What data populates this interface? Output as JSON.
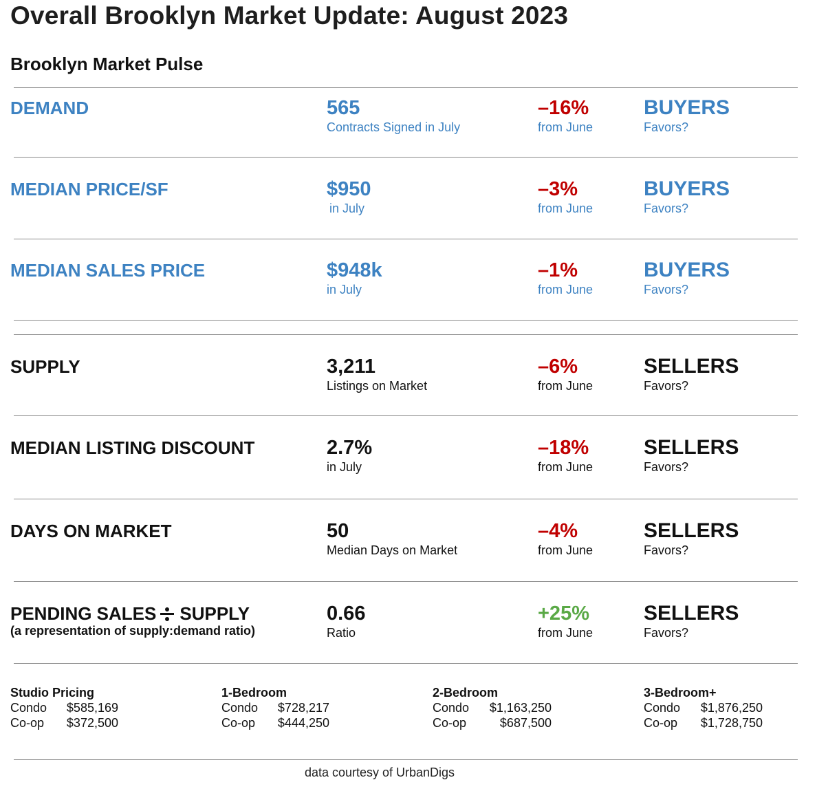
{
  "title": "Overall Brooklyn Market Update: August 2023",
  "subtitle": "Brooklyn Market Pulse",
  "metrics": [
    {
      "label": "DEMAND",
      "note": "",
      "value": "565",
      "value_sub": "Contracts Signed in July",
      "change": "–16%",
      "change_sub": "from June",
      "favors": "BUYERS",
      "favors_sub": "Favors?",
      "label_color": "#3d82c2",
      "change_color": "#c00000"
    },
    {
      "label": "MEDIAN PRICE/SF",
      "note": "",
      "value": "$950",
      "value_sub": "in July",
      "change": "–3%",
      "change_sub": "from June",
      "favors": "BUYERS",
      "favors_sub": "Favors?",
      "label_color": "#3d82c2",
      "change_color": "#c00000"
    },
    {
      "label": "MEDIAN SALES PRICE",
      "note": "",
      "value": "$948k",
      "value_sub": "in July",
      "change": "–1%",
      "change_sub": "from June",
      "favors": "BUYERS",
      "favors_sub": "Favors?",
      "label_color": "#3d82c2",
      "change_color": "#c00000"
    },
    {
      "label": "SUPPLY",
      "note": "",
      "value": "3,211",
      "value_sub": "Listings on Market",
      "change": "–6%",
      "change_sub": "from June",
      "favors": "SELLERS",
      "favors_sub": "Favors?",
      "label_color": "#111111",
      "change_color": "#c00000"
    },
    {
      "label": "MEDIAN LISTING DISCOUNT",
      "note": "",
      "value": "2.7%",
      "value_sub": "in July",
      "change": "–18%",
      "change_sub": "from June",
      "favors": "SELLERS",
      "favors_sub": "Favors?",
      "label_color": "#111111",
      "change_color": "#c00000"
    },
    {
      "label": "DAYS ON MARKET",
      "note": "",
      "value": "50",
      "value_sub": "Median Days on Market",
      "change": "–4%",
      "change_sub": "from June",
      "favors": "SELLERS",
      "favors_sub": "Favors?",
      "label_color": "#111111",
      "change_color": "#c00000"
    },
    {
      "label": "PENDING SALES",
      "label_after": "SUPPLY",
      "note": "(a representation of supply:demand ratio)",
      "value": "0.66",
      "value_sub": "Ratio",
      "change": "+25%",
      "change_sub": "from June",
      "favors": "SELLERS",
      "favors_sub": "Favors?",
      "label_color": "#111111",
      "change_color": "#5aa946"
    }
  ],
  "pricing": [
    {
      "title": "Studio Pricing",
      "rows": [
        {
          "type": "Condo",
          "price": "$585,169"
        },
        {
          "type": "Co-op",
          "price": "$372,500"
        }
      ]
    },
    {
      "title": "1-Bedroom",
      "rows": [
        {
          "type": "Condo",
          "price": "$728,217"
        },
        {
          "type": "Co-op",
          "price": "$444,250"
        }
      ]
    },
    {
      "title": "2-Bedroom",
      "rows": [
        {
          "type": "Condo",
          "price": "$1,163,250"
        },
        {
          "type": "Co-op",
          "price": "$687,500"
        }
      ]
    },
    {
      "title": "3-Bedroom+",
      "rows": [
        {
          "type": "Condo",
          "price": "$1,876,250"
        },
        {
          "type": "Co-op",
          "price": "$1,728,750"
        }
      ]
    }
  ],
  "footer": "data courtesy of UrbanDigs"
}
